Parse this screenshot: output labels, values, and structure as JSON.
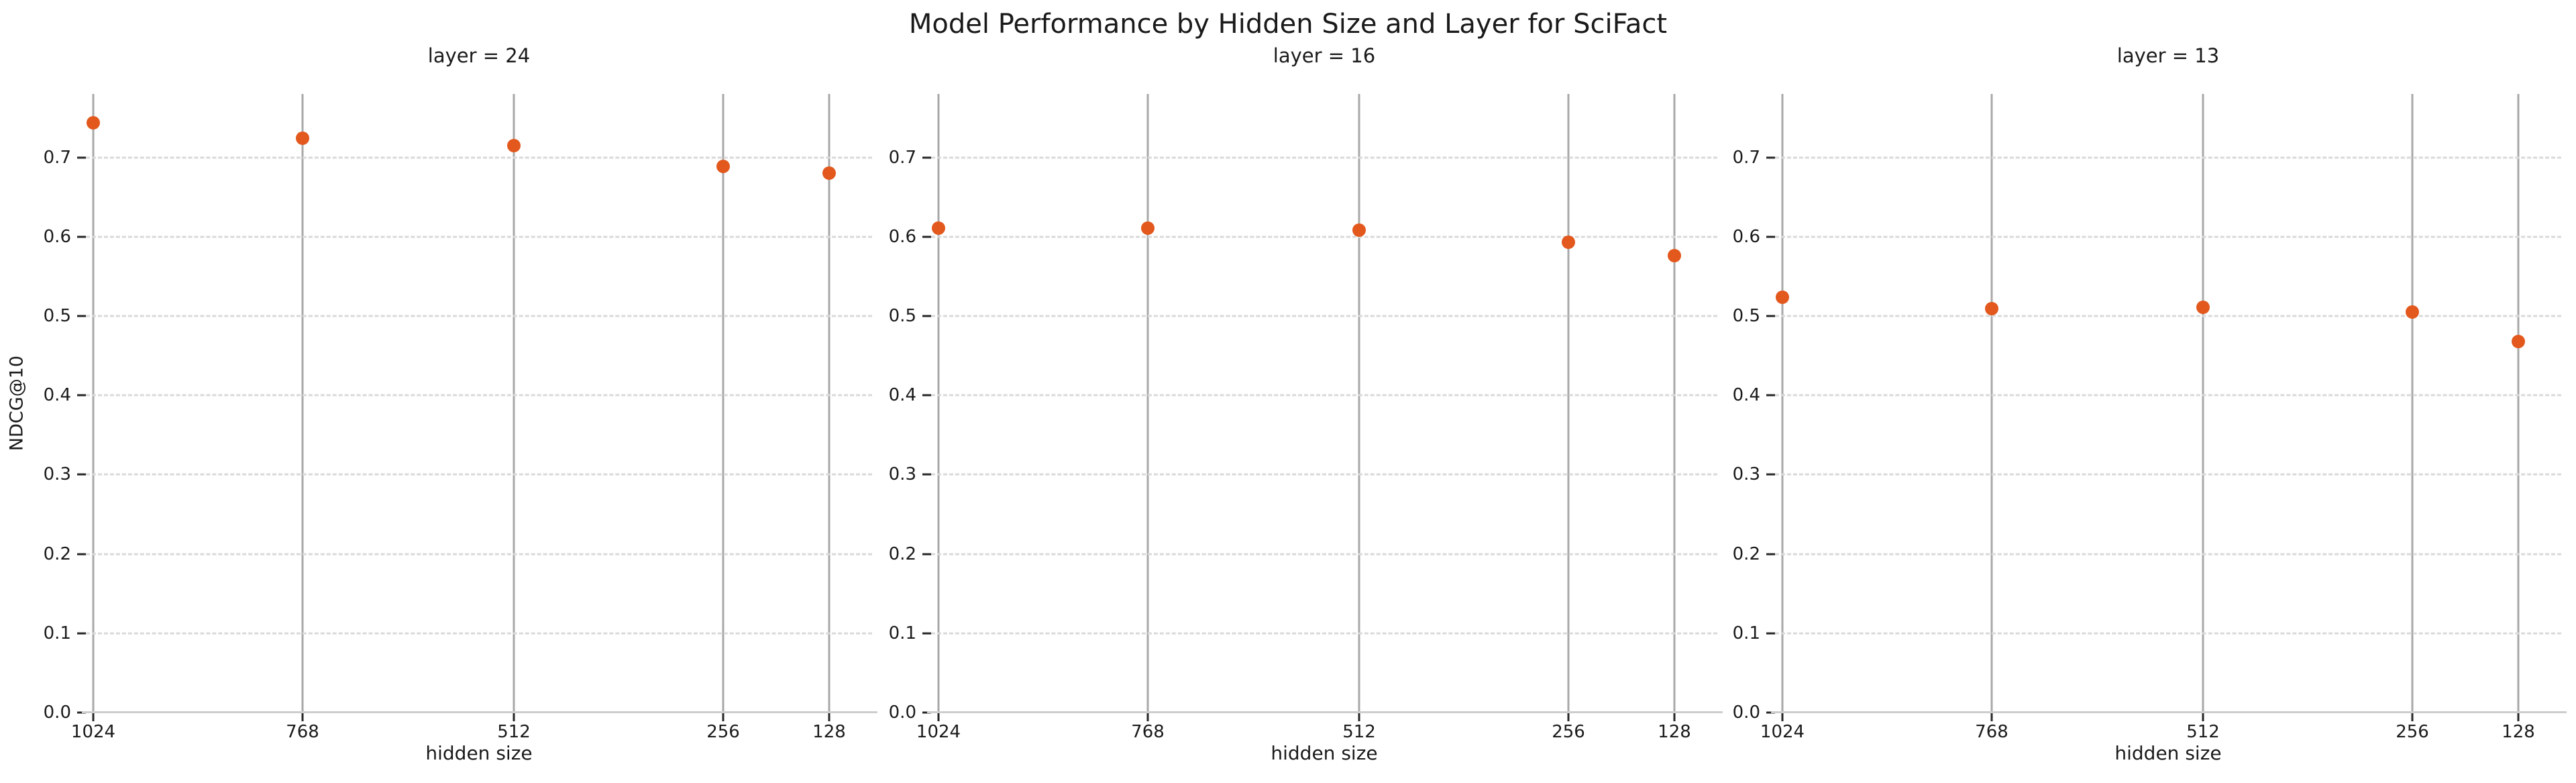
{
  "figure": {
    "title": "Model Performance by Hidden Size and Layer for SciFact",
    "ylabel": "NDCG@10"
  },
  "chart_data": {
    "type": "scatter",
    "title": "Model Performance by Hidden Size and Layer for SciFact",
    "xlabel": "hidden size",
    "ylabel": "NDCG@10",
    "categories": [
      1024,
      768,
      512,
      256,
      128
    ],
    "x_axis": "linear, reversed (1024 on left down to 128 on right)",
    "ylim": [
      0,
      0.78
    ],
    "yticks": [
      "0.0",
      "0.1",
      "0.2",
      "0.3",
      "0.4",
      "0.5",
      "0.6",
      "0.7"
    ],
    "grid": {
      "vertical": "solid gray at each hidden-size value",
      "horizontal": "dashed light gray at each 0.1"
    },
    "legend": "none",
    "marker_color": "#e2581d",
    "facets": [
      {
        "title": "layer = 24",
        "values": [
          0.744,
          0.724,
          0.715,
          0.689,
          0.68
        ]
      },
      {
        "title": "layer = 16",
        "values": [
          0.611,
          0.611,
          0.608,
          0.593,
          0.576
        ]
      },
      {
        "title": "layer = 13",
        "values": [
          0.524,
          0.509,
          0.511,
          0.505,
          0.468
        ]
      }
    ]
  }
}
